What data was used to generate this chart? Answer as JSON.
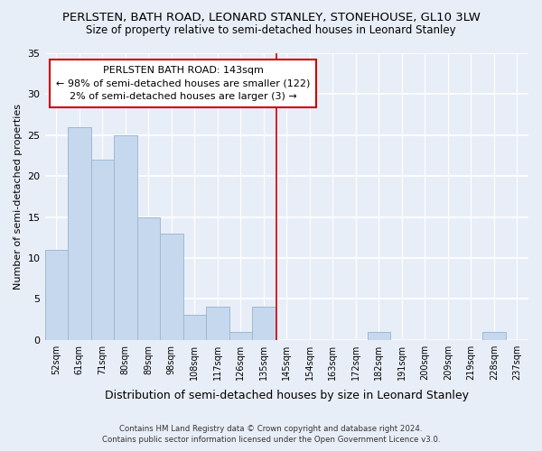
{
  "title": "PERLSTEN, BATH ROAD, LEONARD STANLEY, STONEHOUSE, GL10 3LW",
  "subtitle": "Size of property relative to semi-detached houses in Leonard Stanley",
  "xlabel": "Distribution of semi-detached houses by size in Leonard Stanley",
  "ylabel": "Number of semi-detached properties",
  "bin_labels": [
    "52sqm",
    "61sqm",
    "71sqm",
    "80sqm",
    "89sqm",
    "98sqm",
    "108sqm",
    "117sqm",
    "126sqm",
    "135sqm",
    "145sqm",
    "154sqm",
    "163sqm",
    "172sqm",
    "182sqm",
    "191sqm",
    "200sqm",
    "209sqm",
    "219sqm",
    "228sqm",
    "237sqm"
  ],
  "bar_heights": [
    11,
    26,
    22,
    25,
    15,
    13,
    3,
    4,
    1,
    4,
    0,
    0,
    0,
    0,
    1,
    0,
    0,
    0,
    0,
    1,
    0
  ],
  "bar_color": "#c5d8ed",
  "bar_edge_color": "#a0b8d0",
  "vline_x": 9.55,
  "vline_color": "#cc0000",
  "annotation_title": "PERLSTEN BATH ROAD: 143sqm",
  "annotation_line1": "← 98% of semi-detached houses are smaller (122)",
  "annotation_line2": "2% of semi-detached houses are larger (3) →",
  "annotation_box_color": "white",
  "annotation_box_edge": "#cc0000",
  "ylim": [
    0,
    35
  ],
  "yticks": [
    0,
    5,
    10,
    15,
    20,
    25,
    30,
    35
  ],
  "footer1": "Contains HM Land Registry data © Crown copyright and database right 2024.",
  "footer2": "Contains public sector information licensed under the Open Government Licence v3.0.",
  "bg_color": "#e8eef8",
  "title_fontsize": 9.5,
  "subtitle_fontsize": 8.5,
  "xlabel_fontsize": 9,
  "ylabel_fontsize": 8
}
